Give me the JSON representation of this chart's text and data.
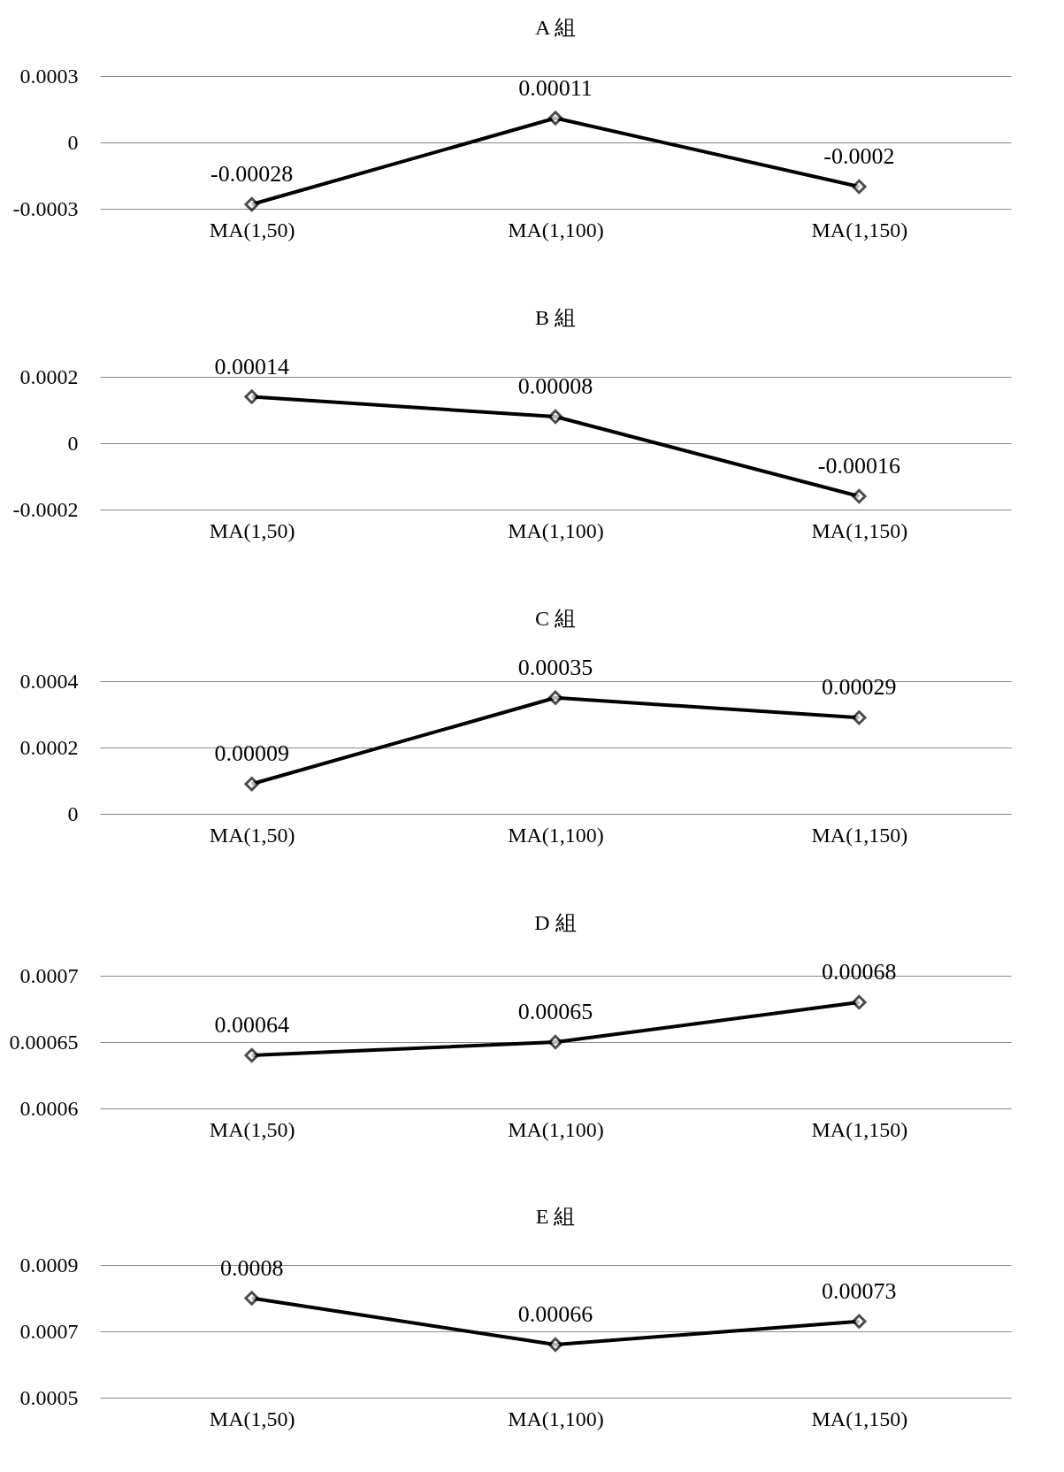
{
  "chart_data": [
    {
      "type": "line",
      "title": "A 組",
      "categories": [
        "MA(1,50)",
        "MA(1,100)",
        "MA(1,150)"
      ],
      "series": [
        {
          "color": "#000000",
          "values": [
            -0.00028,
            0.00011,
            -0.0002
          ],
          "value_labels": [
            "-0.00028",
            "0.00011",
            "-0.0002"
          ]
        }
      ],
      "ylim": [
        -0.0003,
        0.0003
      ],
      "yticks": [
        -0.0003,
        0,
        0.0003
      ],
      "grid": "y",
      "marker": "diamond",
      "line_style": "solid"
    },
    {
      "type": "line",
      "title": "B 組",
      "categories": [
        "MA(1,50)",
        "MA(1,100)",
        "MA(1,150)"
      ],
      "series": [
        {
          "color": "#000000",
          "values": [
            0.00014,
            8e-05,
            -0.00016
          ],
          "value_labels": [
            "0.00014",
            "0.00008",
            "-0.00016"
          ]
        }
      ],
      "ylim": [
        -0.0002,
        0.0002
      ],
      "yticks": [
        -0.0002,
        0,
        0.0002
      ],
      "grid": "y",
      "marker": "diamond",
      "line_style": "solid"
    },
    {
      "type": "line",
      "title": "C 組",
      "categories": [
        "MA(1,50)",
        "MA(1,100)",
        "MA(1,150)"
      ],
      "series": [
        {
          "color": "#000000",
          "values": [
            9e-05,
            0.00035,
            0.00029
          ],
          "value_labels": [
            "0.00009",
            "0.00035",
            "0.00029"
          ]
        }
      ],
      "ylim": [
        0,
        0.0004
      ],
      "yticks": [
        0,
        0.0002,
        0.0004
      ],
      "grid": "y",
      "marker": "diamond",
      "line_style": "solid"
    },
    {
      "type": "line",
      "title": "D 組",
      "categories": [
        "MA(1,50)",
        "MA(1,100)",
        "MA(1,150)"
      ],
      "series": [
        {
          "color": "#000000",
          "values": [
            0.00064,
            0.00065,
            0.00068
          ],
          "value_labels": [
            "0.00064",
            "0.00065",
            "0.00068"
          ]
        }
      ],
      "ylim": [
        0.0006,
        0.0007
      ],
      "yticks": [
        0.0006,
        0.00065,
        0.0007
      ],
      "grid": "y",
      "marker": "diamond",
      "line_style": "solid"
    },
    {
      "type": "line",
      "title": "E 組",
      "categories": [
        "MA(1,50)",
        "MA(1,100)",
        "MA(1,150)"
      ],
      "series": [
        {
          "color": "#000000",
          "values": [
            0.0008,
            0.00066,
            0.00073
          ],
          "value_labels": [
            "0.0008",
            "0.00066",
            "0.00073"
          ]
        }
      ],
      "ylim": [
        0.0005,
        0.0009
      ],
      "yticks": [
        0.0005,
        0.0007,
        0.0009
      ],
      "grid": "y",
      "marker": "diamond",
      "line_style": "solid"
    }
  ]
}
